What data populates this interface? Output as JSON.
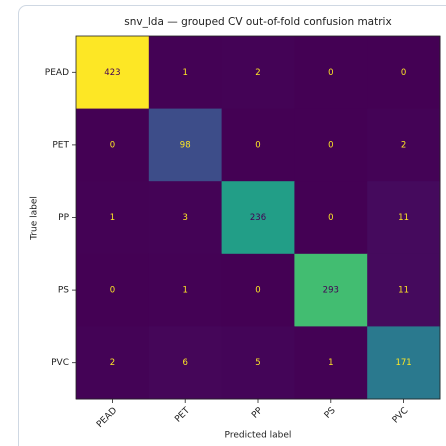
{
  "chart_data": {
    "type": "heatmap",
    "title": "snv_lda — grouped CV out-of-fold confusion matrix",
    "xlabel": "Predicted label",
    "ylabel": "True label",
    "x_categories": [
      "PEAD",
      "PET",
      "PP",
      "PS",
      "PVC"
    ],
    "y_categories": [
      "PEAD",
      "PET",
      "PP",
      "PS",
      "PVC"
    ],
    "values": [
      [
        423,
        1,
        2,
        0,
        0
      ],
      [
        0,
        98,
        0,
        0,
        2
      ],
      [
        1,
        3,
        236,
        0,
        11
      ],
      [
        0,
        1,
        0,
        293,
        11
      ],
      [
        2,
        6,
        5,
        1,
        171
      ]
    ],
    "colormap": "viridis"
  }
}
